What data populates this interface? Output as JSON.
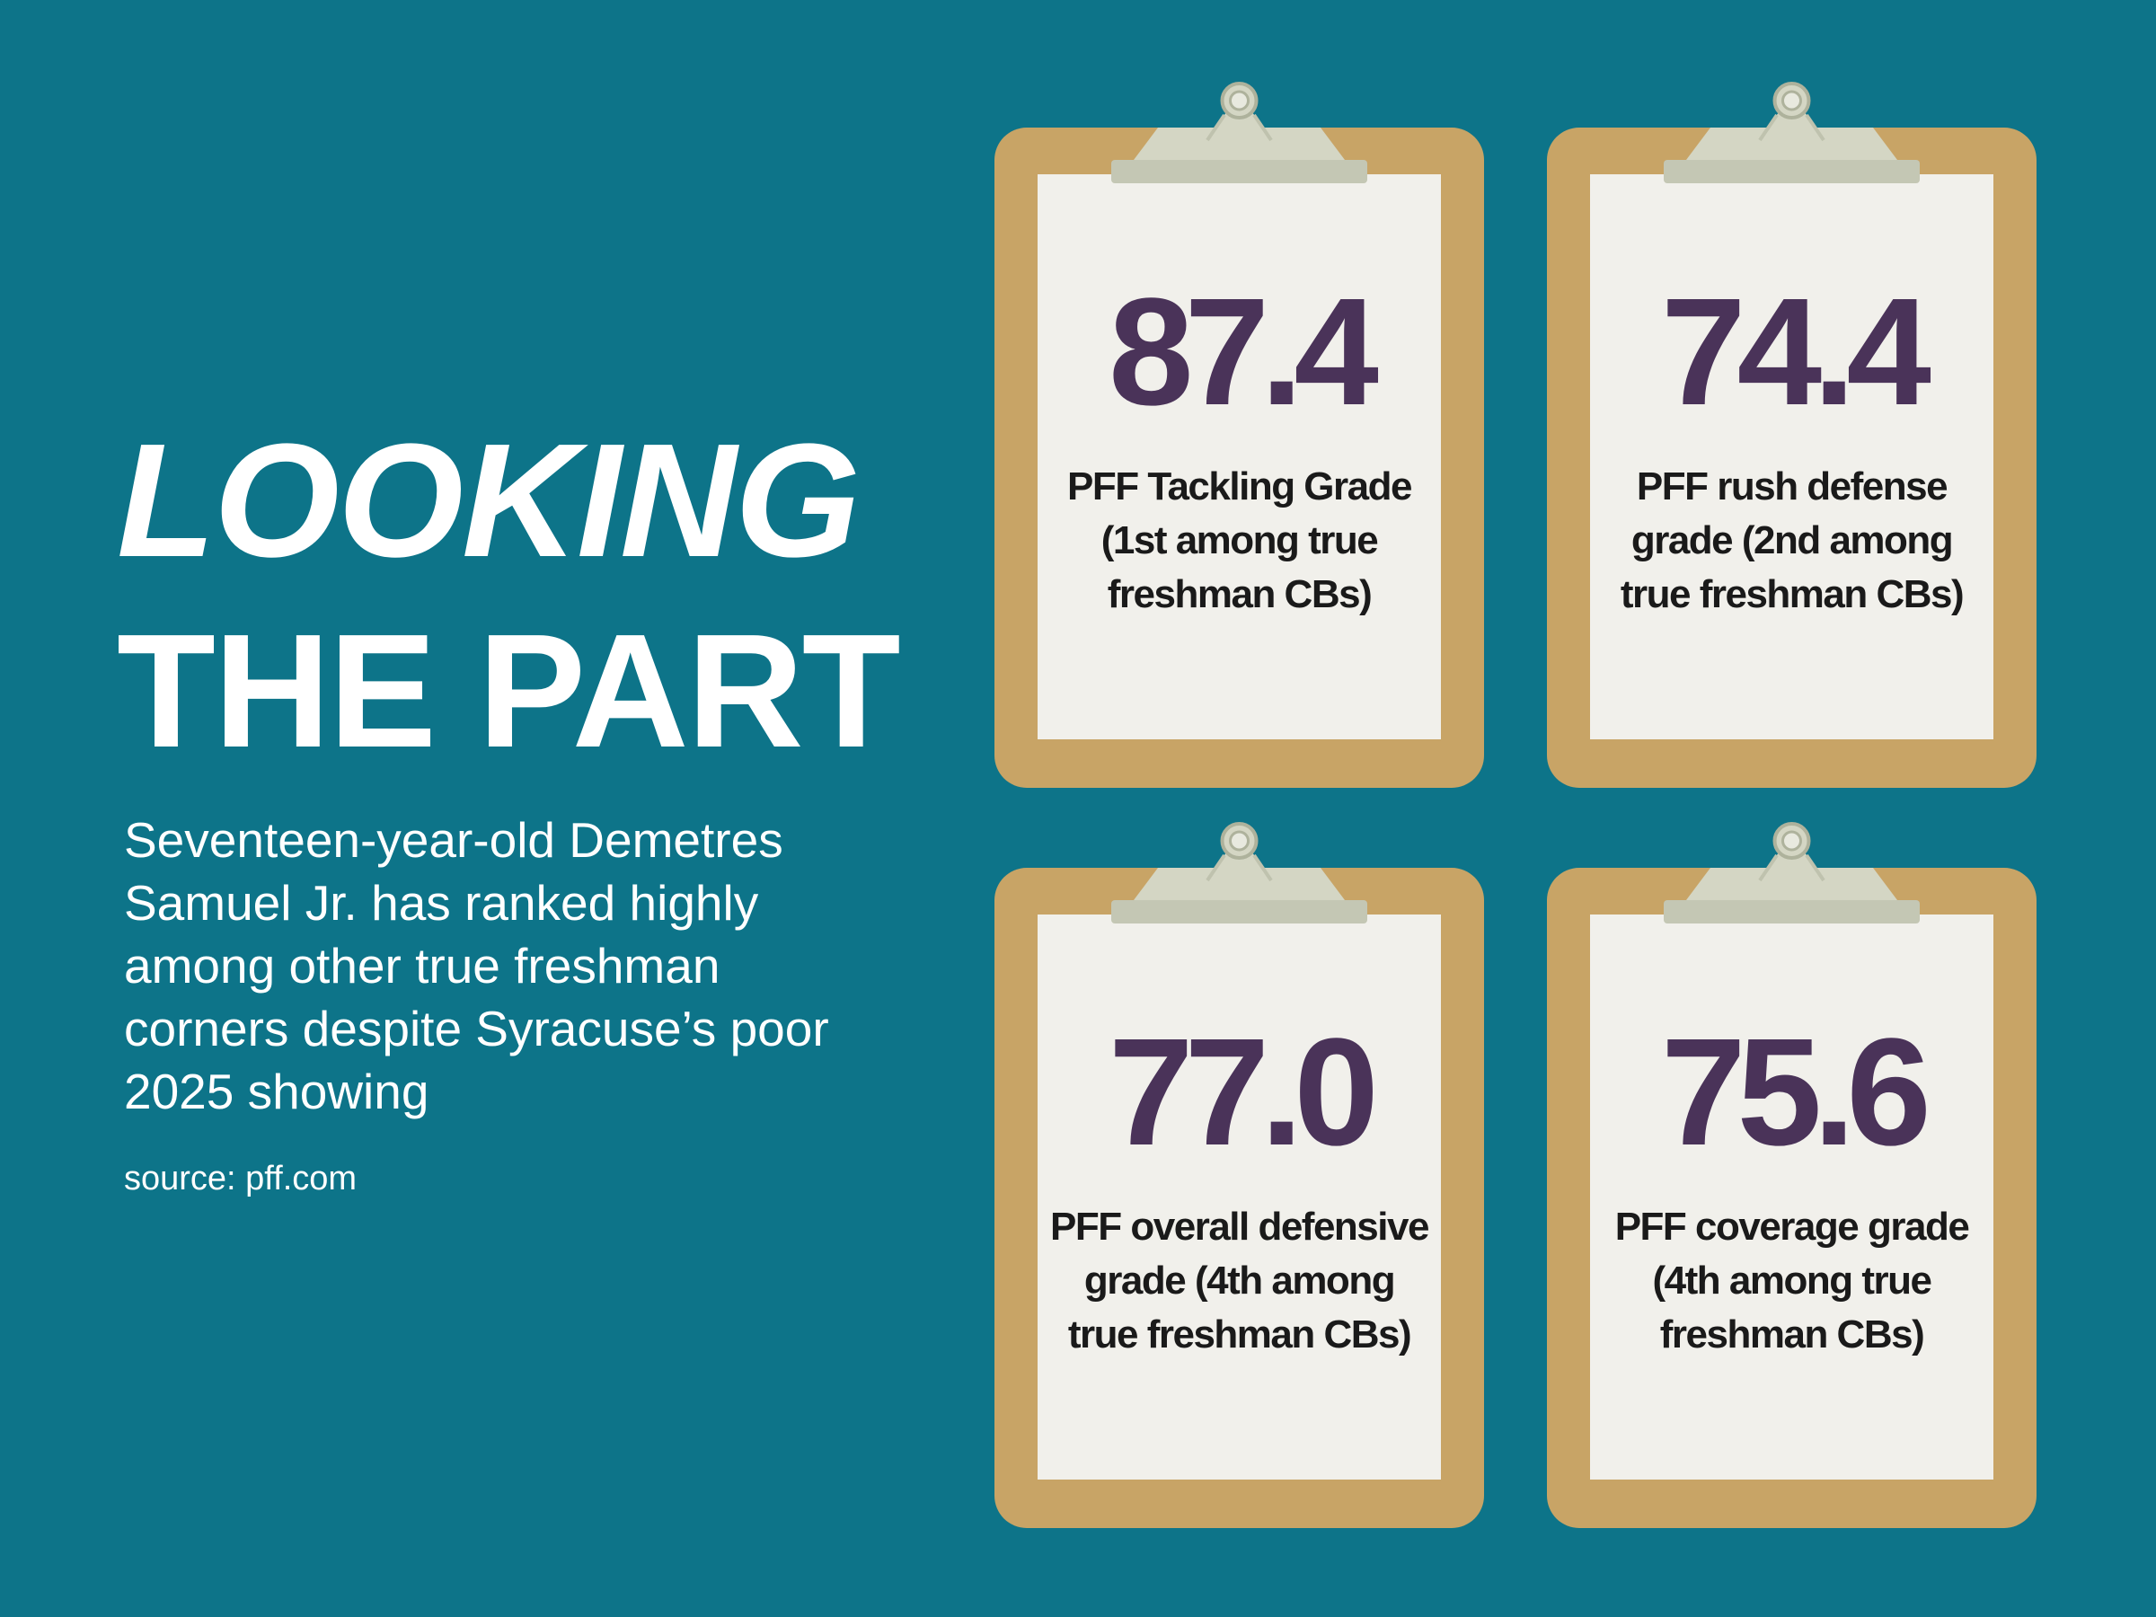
{
  "headline": {
    "line1": "LOOKING",
    "line2": "THE PART"
  },
  "subtitle": "Seventeen-year-old Demetres Samuel Jr. has ranked highly among other true freshman corners despite Syracuse’s poor 2025 showing",
  "source": "source: pff.com",
  "colors": {
    "background": "#0d7489",
    "clipboard": "#c8a466",
    "paper": "#f1f0eb",
    "clip": "#d4d6c4",
    "grade_text": "#4a3359",
    "label_text": "#1a1a1a"
  },
  "cards": [
    {
      "value": "87.4",
      "label": "PFF Tackling Grade (1st among true freshman CBs)"
    },
    {
      "value": "74.4",
      "label": "PFF rush defense grade (2nd among true freshman CBs)"
    },
    {
      "value": "77.0",
      "label": "PFF overall defensive grade (4th among true freshman CBs)"
    },
    {
      "value": "75.6",
      "label": "PFF coverage grade (4th among true freshman CBs)"
    }
  ]
}
